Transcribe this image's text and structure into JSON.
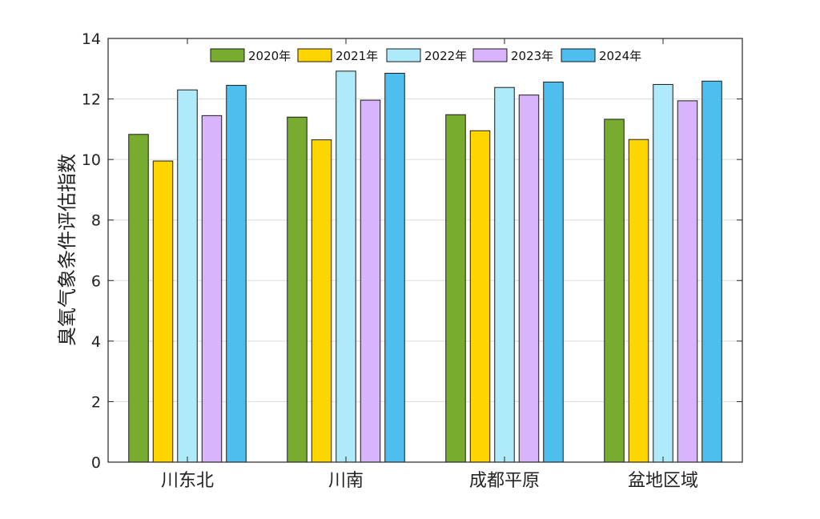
{
  "chart_data": {
    "type": "bar",
    "ylabel": "臭氧气象条件评估指数",
    "xlabel": "",
    "ylim": [
      0,
      14
    ],
    "yticks": [
      0,
      2,
      4,
      6,
      8,
      10,
      12,
      14
    ],
    "grid": true,
    "legend_position": "top",
    "categories": [
      "川东北",
      "川南",
      "成都平原",
      "盆地区域"
    ],
    "series": [
      {
        "name": "2020年",
        "color": "#77ac30",
        "values": [
          10.83,
          11.4,
          11.48,
          11.33
        ]
      },
      {
        "name": "2021年",
        "color": "#ffd500",
        "values": [
          9.95,
          10.65,
          10.95,
          10.66
        ]
      },
      {
        "name": "2022年",
        "color": "#aeeaf9",
        "values": [
          12.3,
          12.92,
          12.38,
          12.48
        ]
      },
      {
        "name": "2023年",
        "color": "#d9b3fb",
        "values": [
          11.45,
          11.96,
          12.13,
          11.94
        ]
      },
      {
        "name": "2024年",
        "color": "#4dbeee",
        "values": [
          12.45,
          12.85,
          12.56,
          12.59
        ]
      }
    ]
  }
}
